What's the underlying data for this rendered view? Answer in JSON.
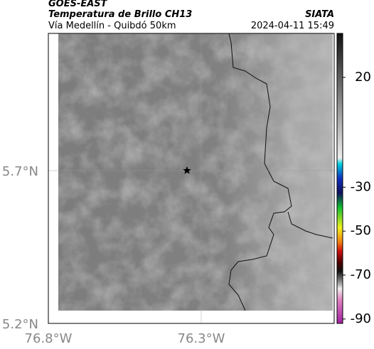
{
  "header": {
    "title": "GOES-EAST",
    "subtitle": "Temperatura de Brillo CH13",
    "region": "Vía Medellín - Quibdó 50km",
    "source": "SIATA",
    "timestamp": "2024-04-11 15:49"
  },
  "map": {
    "lon_range": [
      -76.8,
      -75.865
    ],
    "lat_range": [
      5.2,
      6.149
    ],
    "lat_ticks": [
      {
        "value": 5.7,
        "label": "5.7°N"
      },
      {
        "value": 5.2,
        "label": "5.2°N"
      }
    ],
    "lon_ticks": [
      {
        "value": -76.8,
        "label": "76.8°W"
      },
      {
        "value": -76.3,
        "label": "76.3°W"
      }
    ]
  },
  "colorbar": {
    "range": [
      40,
      -92
    ],
    "ticks": [
      20,
      -30,
      -50,
      -70,
      -90
    ]
  }
}
